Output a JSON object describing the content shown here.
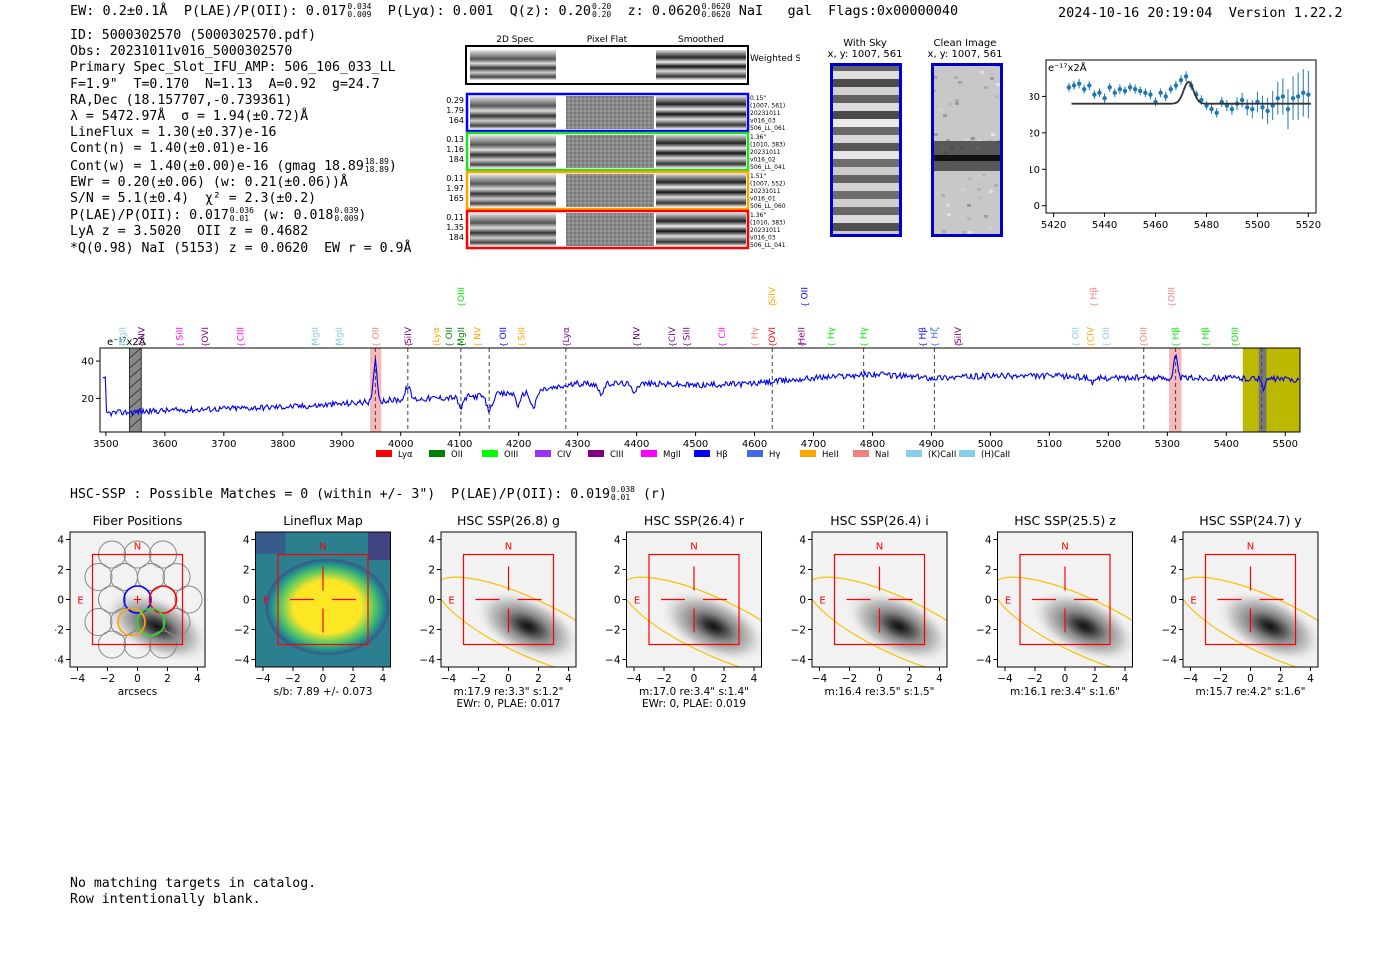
{
  "header": {
    "ew": "EW: 0.2±0.1Å",
    "plae_label": "P(LAE)/P(OII): 0.017",
    "plae_hi": "0.034",
    "plae_lo": "0.009",
    "plya": "P(Lyα): 0.001",
    "qz_label": "Q(z): 0.20",
    "qz_hi": "0.20",
    "qz_lo": "0.20",
    "z_label": "z: 0.0620",
    "z_hi": "0.0620",
    "z_lo": "0.0620",
    "species": "NaI",
    "type": "gal",
    "flags": "Flags:0x00000040",
    "datetime": "2024-10-16 20:19:04",
    "version": "Version 1.22.2"
  },
  "info_lines": [
    "ID: 5000302570 (5000302570.pdf)",
    "Obs: 20231011v016_5000302570",
    "Primary Spec_Slot_IFU_AMP: 506_106_033_LL",
    "F=1.9\"  T=0.170  N=1.13  A=0.92  g=24.7",
    "RA,Dec (18.157707,-0.739361)",
    "λ = 5472.97Å  σ = 1.94(±0.72)Å",
    "LineFlux = 1.30(±0.37)e-16",
    "Cont(n) = 1.40(±0.01)e-16",
    "Cont(w) = 1.40(±0.00)e-16 (gmag 18.89",
    "EWr = 0.20(±0.06) (w: 0.21(±0.06))Å",
    "S/N = 5.1(±0.4)  χ² = 2.3(±0.2)",
    "P(LAE)/P(OII): 0.017",
    "LyA z = 3.5020  OII z = 0.4682",
    "*Q(0.98) NaI (5153) z = 0.0620  EW r = 0.9Å"
  ],
  "info_extra": {
    "gmag_hi": "18.89",
    "gmag_lo": "18.89",
    "plae_hi": "0.036",
    "plae_lo": "0.01",
    "plae_w": "(w: 0.018",
    "plae_w_hi": "0.039",
    "plae_w_lo": "0.009"
  },
  "cutout_panel": {
    "col_labels": [
      "2D Spec",
      "Pixel Flat",
      "Smoothed"
    ],
    "weighted_label": "Weighted Sum",
    "rows": [
      {
        "left": [
          "0.29",
          "1.79",
          "164"
        ],
        "right": [
          "0.15\"",
          "(1007, 561)",
          "20231011",
          "v016_03",
          "506_LL_061"
        ],
        "color": "#0000ff"
      },
      {
        "left": [
          "0.13",
          "1.16",
          "184"
        ],
        "right": [
          "1.36\"",
          "(1010, 383)",
          "20231011",
          "v016_02",
          "506_LL_041"
        ],
        "color": "#22dd22"
      },
      {
        "left": [
          "0.11",
          "1.97",
          "165"
        ],
        "right": [
          "1.51\"",
          "(1007, 552)",
          "20231011",
          "v016_01",
          "506_LL_060"
        ],
        "color": "#ffa500"
      },
      {
        "left": [
          "0.11",
          "1.35",
          "184"
        ],
        "right": [
          "1.36\"",
          "(1010, 383)",
          "20231011",
          "v016_03",
          "506_LL_041"
        ],
        "color": "#ff0000"
      }
    ]
  },
  "sky_panels": [
    {
      "title": "With Sky",
      "subtitle": "x, y: 1007, 561"
    },
    {
      "title": "Clean Image",
      "subtitle": "x, y: 1007, 561"
    }
  ],
  "zoom_chart": {
    "type": "scatter",
    "unit_label": "e⁻¹⁷x2Å",
    "xlim": [
      5417,
      5523
    ],
    "ylim": [
      -2,
      40
    ],
    "xticks": [
      5420,
      5440,
      5460,
      5480,
      5500,
      5520
    ],
    "yticks": [
      0,
      10,
      20,
      30
    ],
    "x": [
      5426,
      5428,
      5430,
      5432,
      5434,
      5436,
      5438,
      5440,
      5442,
      5444,
      5446,
      5448,
      5450,
      5452,
      5454,
      5456,
      5458,
      5460,
      5462,
      5464,
      5466,
      5468,
      5470,
      5472,
      5474,
      5476,
      5478,
      5480,
      5482,
      5484,
      5486,
      5488,
      5490,
      5492,
      5494,
      5496,
      5498,
      5500,
      5502,
      5504,
      5506,
      5508,
      5510,
      5512,
      5514,
      5516,
      5518,
      5520
    ],
    "y": [
      32.5,
      33.0,
      33.5,
      32.0,
      33.0,
      30.5,
      31.0,
      29.5,
      32.5,
      31.0,
      32.0,
      31.5,
      32.5,
      32.0,
      31.5,
      31.0,
      30.5,
      28.5,
      31.0,
      30.0,
      32.0,
      33.0,
      34.5,
      35.5,
      33.0,
      30.5,
      29.0,
      27.5,
      26.5,
      25.5,
      28.5,
      27.5,
      26.5,
      28.0,
      29.0,
      27.0,
      26.5,
      28.5,
      27.0,
      26.0,
      27.5,
      29.5,
      30.0,
      26.5,
      29.5,
      30.0,
      31.0,
      30.5
    ],
    "err": [
      1.2,
      1.2,
      1.3,
      1.2,
      1.3,
      1.2,
      1.2,
      1.3,
      1.2,
      1.2,
      1.3,
      1.2,
      1.2,
      1.3,
      1.2,
      1.2,
      1.3,
      1.2,
      1.2,
      1.3,
      1.2,
      1.3,
      1.3,
      1.4,
      1.3,
      1.2,
      1.3,
      1.2,
      1.3,
      1.3,
      1.4,
      1.5,
      1.6,
      1.8,
      2.0,
      2.2,
      2.5,
      2.8,
      3.2,
      3.6,
      4.0,
      4.5,
      5.0,
      5.5,
      6.0,
      6.5,
      6.5,
      6.5
    ],
    "fit": {
      "continuum": 28.0,
      "amplitude": 6.0,
      "center": 5472.97,
      "sigma": 1.94,
      "xrange": [
        5427,
        5521
      ]
    }
  },
  "full_spectrum": {
    "type": "line",
    "unit_label": "e⁻¹⁷x2Å",
    "xlim": [
      3490,
      5525
    ],
    "ylim": [
      2,
      47
    ],
    "xticks": [
      3500,
      3600,
      3700,
      3800,
      3900,
      4000,
      4100,
      4200,
      4300,
      4400,
      4500,
      4600,
      4700,
      4800,
      4900,
      5000,
      5100,
      5200,
      5300,
      5400,
      5500
    ],
    "yticks": [
      20,
      40
    ],
    "anchors": [
      [
        3500,
        12
      ],
      [
        3560,
        13
      ],
      [
        3650,
        14
      ],
      [
        3750,
        15
      ],
      [
        3850,
        16
      ],
      [
        3940,
        18
      ],
      [
        3980,
        19
      ],
      [
        4050,
        20
      ],
      [
        4120,
        21
      ],
      [
        4200,
        23
      ],
      [
        4270,
        26
      ],
      [
        4300,
        28
      ],
      [
        4400,
        28
      ],
      [
        4500,
        27
      ],
      [
        4600,
        28
      ],
      [
        4700,
        31
      ],
      [
        4800,
        33
      ],
      [
        4900,
        31
      ],
      [
        5000,
        32
      ],
      [
        5100,
        32
      ],
      [
        5200,
        31
      ],
      [
        5300,
        31
      ],
      [
        5400,
        31
      ],
      [
        5525,
        30
      ]
    ],
    "features": [
      {
        "wave": 3957,
        "amp": 22,
        "width": 3
      },
      {
        "wave": 4012,
        "amp": 7,
        "width": 4
      },
      {
        "wave": 4102,
        "amp": -6,
        "width": 4
      },
      {
        "wave": 4150,
        "amp": -8,
        "width": 5
      },
      {
        "wave": 4200,
        "amp": -7,
        "width": 4
      },
      {
        "wave": 4225,
        "amp": -9,
        "width": 5
      },
      {
        "wave": 4340,
        "amp": -5,
        "width": 5
      },
      {
        "wave": 4395,
        "amp": -4,
        "width": 5
      },
      {
        "wave": 5314,
        "amp": 12,
        "width": 3
      },
      {
        "wave": 5175,
        "amp": -3,
        "width": 5
      },
      {
        "wave": 5464,
        "amp": -5,
        "width": 3
      }
    ],
    "noise": 1.6,
    "dashed_lines": [
      3957,
      4012,
      4102,
      4150,
      4280,
      4630,
      4785,
      4905,
      5260,
      5314,
      5460
    ],
    "pink_bands": [
      [
        3948,
        3967
      ],
      [
        5303,
        5324
      ]
    ],
    "masked_bands": [
      [
        3540,
        3560
      ]
    ],
    "olive_band": [
      5428,
      5525
    ],
    "olive_mask": [
      5455,
      5468
    ],
    "line_labels": [
      {
        "text": "MgII",
        "wave": 3528,
        "color": "#87ceeb",
        "row": 0
      },
      {
        "text": "NV",
        "wave": 3560,
        "color": "#800080",
        "row": 0
      },
      {
        "text": "SiII",
        "wave": 3625,
        "color": "#ff00ff",
        "row": 0
      },
      {
        "text": "OVI",
        "wave": 3668,
        "color": "#800080",
        "row": 0
      },
      {
        "text": "CIII",
        "wave": 3728,
        "color": "#ff00ff",
        "row": 0
      },
      {
        "text": "MgII",
        "wave": 3855,
        "color": "#87ceeb",
        "row": 0
      },
      {
        "text": "MgII",
        "wave": 3895,
        "color": "#87ceeb",
        "row": 0
      },
      {
        "text": "OII",
        "wave": 3957,
        "color": "#f08080",
        "row": 0
      },
      {
        "text": "SiIV",
        "wave": 4012,
        "color": "#800080",
        "row": 0
      },
      {
        "text": "Lyα",
        "wave": 4060,
        "color": "#ffa500",
        "row": 0
      },
      {
        "text": "OII",
        "wave": 4082,
        "color": "#008000",
        "row": 0
      },
      {
        "text": "MgII",
        "wave": 4102,
        "color": "#008000",
        "row": 0
      },
      {
        "text": "OIII",
        "wave": 4102,
        "color": "#00ee00",
        "row": 1
      },
      {
        "text": "NV",
        "wave": 4130,
        "color": "#ffa500",
        "row": 0
      },
      {
        "text": "OII",
        "wave": 4173,
        "color": "#0000ff",
        "row": 0
      },
      {
        "text": "SiII",
        "wave": 4205,
        "color": "#ffa500",
        "row": 0
      },
      {
        "text": "Lyα",
        "wave": 4280,
        "color": "#800080",
        "row": 0
      },
      {
        "text": "NV",
        "wave": 4400,
        "color": "#800080",
        "row": 0
      },
      {
        "text": "CIV",
        "wave": 4460,
        "color": "#800080",
        "row": 0
      },
      {
        "text": "SiII",
        "wave": 4485,
        "color": "#800080",
        "row": 0
      },
      {
        "text": "CII",
        "wave": 4545,
        "color": "#ff00ff",
        "row": 0
      },
      {
        "text": "Hγ",
        "wave": 4600,
        "color": "#f08080",
        "row": 0
      },
      {
        "text": "OVI",
        "wave": 4630,
        "color": "#ff0000",
        "row": 0
      },
      {
        "text": "SiIV",
        "wave": 4630,
        "color": "#ffa500",
        "row": 1
      },
      {
        "text": "HeII",
        "wave": 4680,
        "color": "#800080",
        "row": 0
      },
      {
        "text": "OII",
        "wave": 4685,
        "color": "#0000ff",
        "row": 1
      },
      {
        "text": "Hγ",
        "wave": 4730,
        "color": "#00ee00",
        "row": 0
      },
      {
        "text": "Hγ",
        "wave": 4785,
        "color": "#00ee00",
        "row": 0
      },
      {
        "text": "Hβ",
        "wave": 4885,
        "color": "#0000ff",
        "row": 0
      },
      {
        "text": "Hζ",
        "wave": 4905,
        "color": "#4169e1",
        "row": 0
      },
      {
        "text": "SiIV",
        "wave": 4945,
        "color": "#800080",
        "row": 0
      },
      {
        "text": "OII",
        "wave": 5144,
        "color": "#87ceeb",
        "row": 0
      },
      {
        "text": "CIV",
        "wave": 5170,
        "color": "#ffa500",
        "row": 0
      },
      {
        "text": "OII",
        "wave": 5196,
        "color": "#87ceeb",
        "row": 0
      },
      {
        "text": "Hβ",
        "wave": 5175,
        "color": "#f08080",
        "row": 1
      },
      {
        "text": "OIII",
        "wave": 5260,
        "color": "#f08080",
        "row": 0
      },
      {
        "text": "OIII",
        "wave": 5307,
        "color": "#f08080",
        "row": 1
      },
      {
        "text": "Hβ",
        "wave": 5314,
        "color": "#00ee00",
        "row": 0
      },
      {
        "text": "Hβ",
        "wave": 5365,
        "color": "#00ee00",
        "row": 0
      },
      {
        "text": "OIII",
        "wave": 5415,
        "color": "#00ee00",
        "row": 0
      }
    ],
    "legend": [
      {
        "label": "Lyα",
        "color": "#ff0000"
      },
      {
        "label": "OII",
        "color": "#008000"
      },
      {
        "label": "OIII",
        "color": "#00ff00"
      },
      {
        "label": "CIV",
        "color": "#9b30ff"
      },
      {
        "label": "CIII",
        "color": "#800080"
      },
      {
        "label": "MgII",
        "color": "#ff00ff"
      },
      {
        "label": "Hβ",
        "color": "#0000ff"
      },
      {
        "label": "Hγ",
        "color": "#4169e1"
      },
      {
        "label": "HeII",
        "color": "#ffa500"
      },
      {
        "label": "NaI",
        "color": "#f08080"
      },
      {
        "label": "(K)CaII",
        "color": "#87ceeb"
      },
      {
        "label": "(H)CaII",
        "color": "#87ceeb"
      }
    ]
  },
  "match_line": {
    "text": "HSC-SSP : Possible Matches = 0 (within +/- 3\")  P(LAE)/P(OII): 0.019",
    "hi": "0.038",
    "lo": "0.01",
    "band": "(r)"
  },
  "stamps": [
    {
      "title": "Fiber Positions",
      "kind": "fiber",
      "caption1": "arcsecs",
      "caption2": ""
    },
    {
      "title": "Lineflux Map",
      "kind": "flux",
      "caption1": "s/b: 7.89 +/- 0.073",
      "caption2": ""
    },
    {
      "title": "HSC SSP(26.8) g",
      "kind": "hsc",
      "caption1": "m:17.9  re:3.3\"  s:1.2\"",
      "caption2": "EWr: 0, PLAE: 0.017"
    },
    {
      "title": "HSC SSP(26.4) r",
      "kind": "hsc",
      "caption1": "m:17.0  re:3.4\"  s:1.4\"",
      "caption2": "EWr: 0, PLAE: 0.019"
    },
    {
      "title": "HSC SSP(26.4) i",
      "kind": "hsc",
      "caption1": "m:16.4  re:3.5\"  s:1.5\"",
      "caption2": ""
    },
    {
      "title": "HSC SSP(25.5) z",
      "kind": "hsc",
      "caption1": "m:16.1  re:3.4\"  s:1.6\"",
      "caption2": ""
    },
    {
      "title": "HSC SSP(24.7) y",
      "kind": "hsc",
      "caption1": "m:15.7  re:4.2\"  s:1.6\"",
      "caption2": ""
    }
  ],
  "stamp_axes": {
    "xlim": [
      -4.5,
      4.5
    ],
    "ylim": [
      -4.5,
      4.5
    ],
    "ticks": [
      -4,
      -2,
      0,
      2,
      4
    ],
    "north": "N",
    "east": "E"
  },
  "footer": [
    "No matching targets in catalog.",
    "Row intentionally blank."
  ]
}
